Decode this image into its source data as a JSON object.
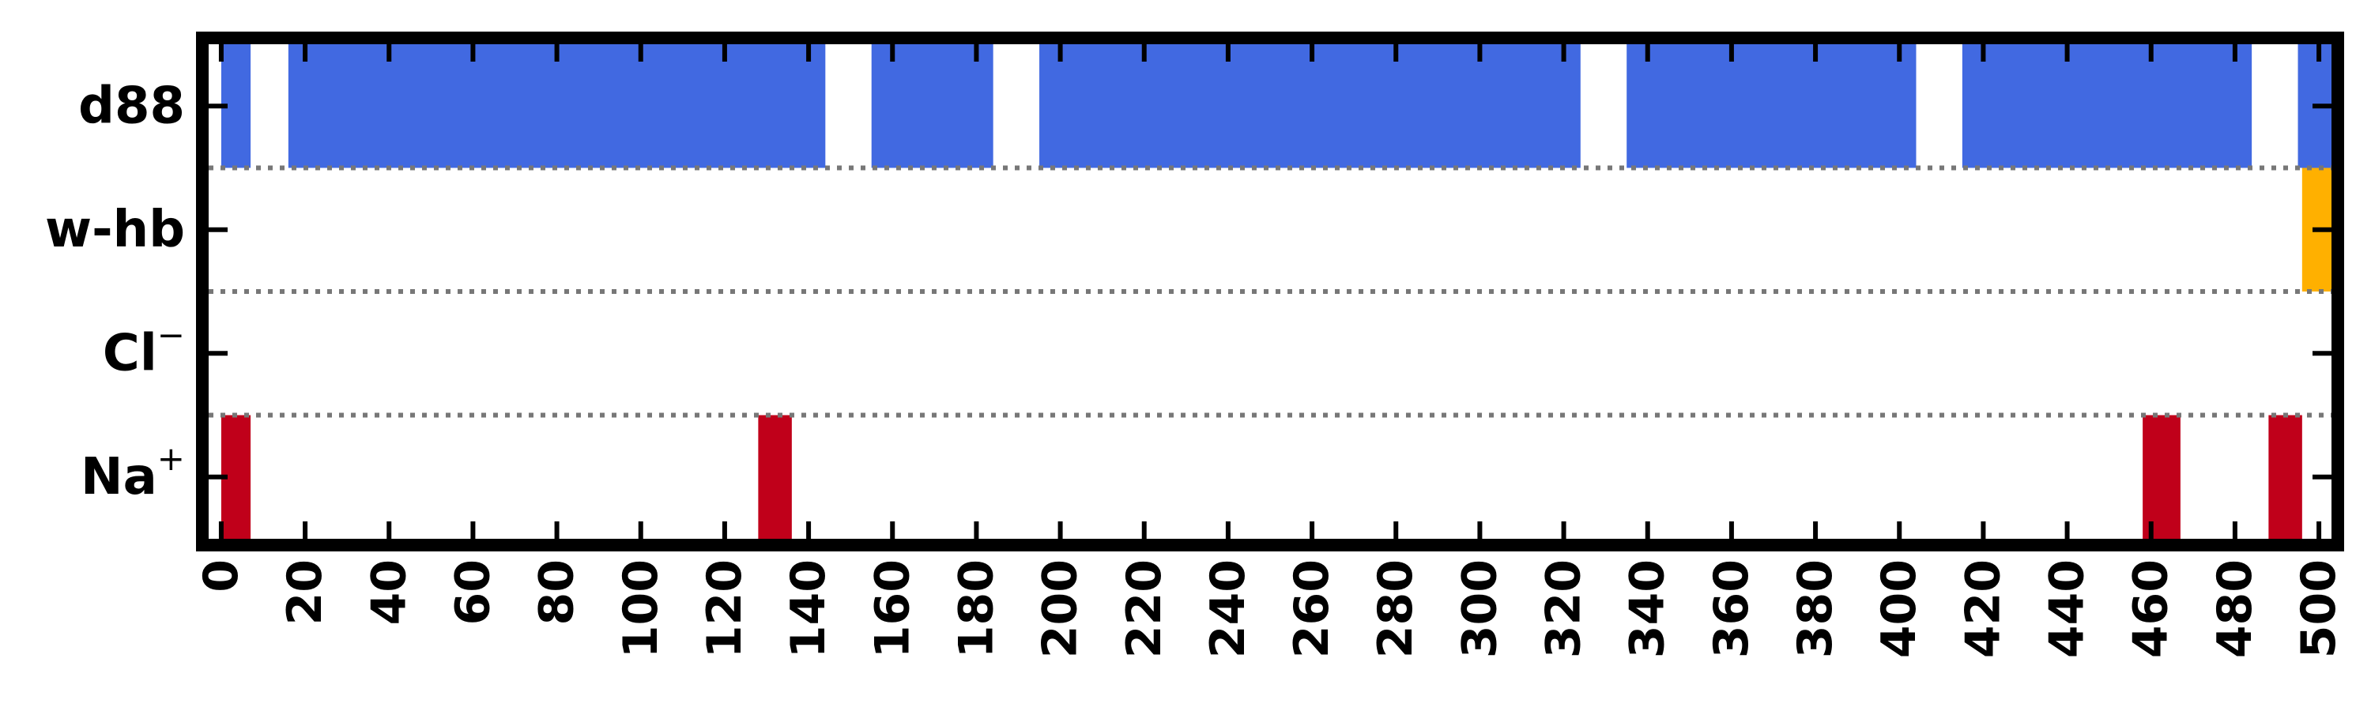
{
  "chart_data": {
    "type": "heatmap",
    "title": "",
    "xlabel": "",
    "ylabel": "",
    "xlim": [
      -3,
      503
    ],
    "x_ticks": [
      0,
      20,
      40,
      60,
      80,
      100,
      120,
      140,
      160,
      180,
      200,
      220,
      240,
      260,
      280,
      300,
      320,
      340,
      360,
      380,
      400,
      420,
      440,
      460,
      480,
      500
    ],
    "grid": false,
    "row_separators": "dotted",
    "rows": [
      {
        "label": "d88",
        "color": "#4169E1",
        "intervals": [
          [
            0,
            7
          ],
          [
            16,
            144
          ],
          [
            155,
            184
          ],
          [
            195,
            324
          ],
          [
            335,
            404
          ],
          [
            415,
            484
          ],
          [
            495,
            503
          ]
        ]
      },
      {
        "label": "w-hb",
        "color": "#FFB000",
        "intervals": [
          [
            496,
            503
          ]
        ]
      },
      {
        "label": "Cl",
        "label_sup": "−",
        "color": "#C0001A",
        "intervals": []
      },
      {
        "label": "Na",
        "label_sup": "+",
        "color": "#C0001A",
        "intervals": [
          [
            0,
            7
          ],
          [
            128,
            136
          ],
          [
            458,
            467
          ],
          [
            488,
            496
          ]
        ]
      }
    ]
  }
}
